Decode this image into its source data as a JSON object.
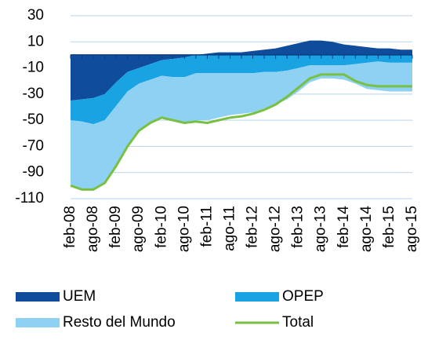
{
  "chart_data": {
    "type": "stacked_area",
    "categories": [
      "feb-08",
      null,
      "ago-08",
      null,
      "feb-09",
      null,
      "ago-09",
      null,
      "feb-10",
      null,
      "ago-10",
      null,
      "feb-11",
      null,
      "ago-11",
      null,
      "feb-12",
      null,
      "ago-12",
      null,
      "feb-13",
      null,
      "ago-13",
      null,
      "feb-14",
      null,
      "ago-14",
      null,
      "feb-15",
      null,
      "ago-15"
    ],
    "series": [
      {
        "name": "UEM",
        "color": "#0f4c9c",
        "values": [
          -35,
          -34,
          -33,
          -30,
          -21,
          -13,
          -10,
          -7,
          -4,
          -3,
          -2,
          0,
          1,
          2,
          2,
          2,
          3,
          4,
          5,
          7,
          9,
          11,
          11,
          10,
          8,
          7,
          6,
          5,
          5,
          4,
          4
        ]
      },
      {
        "name": "OPEP",
        "color": "#1aa3e3",
        "values": [
          -15,
          -17,
          -20,
          -20,
          -18,
          -15,
          -12,
          -12,
          -12,
          -14,
          -15,
          -14,
          -14,
          -14,
          -14,
          -14,
          -14,
          -13,
          -13,
          -12,
          -10,
          -8,
          -8,
          -8,
          -8,
          -7,
          -6,
          -5,
          -6,
          -6,
          -6
        ]
      },
      {
        "name": "Resto del Mundo",
        "color": "#8fd1f2",
        "values": [
          -50,
          -52,
          -50,
          -48,
          -46,
          -42,
          -36,
          -33,
          -32,
          -33,
          -35,
          -36,
          -36,
          -34,
          -32,
          -31,
          -30,
          -28,
          -25,
          -22,
          -18,
          -13,
          -10,
          -10,
          -11,
          -15,
          -20,
          -22,
          -22,
          -22,
          -22
        ]
      },
      {
        "name": "Total",
        "color": "#78c043",
        "line": true,
        "values": [
          -100,
          -103,
          -103,
          -98,
          -85,
          -70,
          -58,
          -52,
          -48,
          -50,
          -52,
          -51,
          -52,
          -50,
          -48,
          -47,
          -45,
          -42,
          -38,
          -32,
          -25,
          -18,
          -15,
          -15,
          -15,
          -20,
          -23,
          -24,
          -24,
          -24,
          -24
        ]
      }
    ],
    "ylim": [
      -110,
      30
    ],
    "yticks": [
      -110,
      -90,
      -70,
      -50,
      -30,
      -10,
      10,
      30
    ],
    "grid": true
  }
}
